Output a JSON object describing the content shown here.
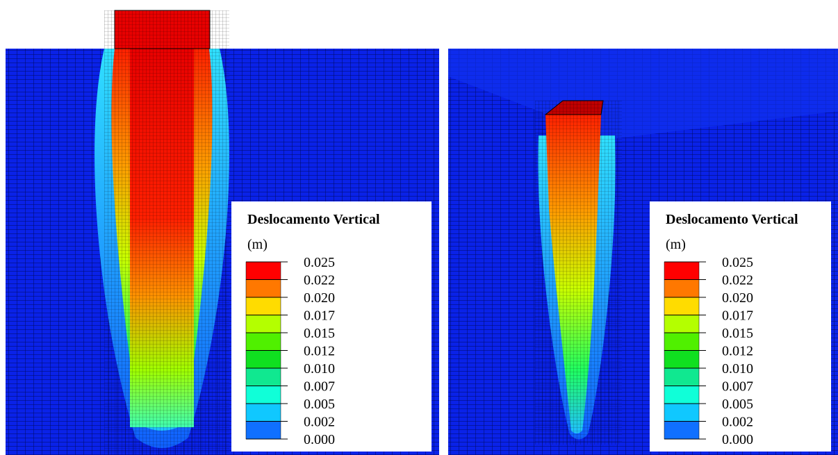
{
  "panels": [
    {
      "legend": {
        "title": "Deslocamento Vertical",
        "unit": "(m)",
        "labels": [
          "0.025",
          "0.022",
          "0.020",
          "0.017",
          "0.015",
          "0.012",
          "0.010",
          "0.007",
          "0.005",
          "0.002",
          "0.000"
        ]
      }
    },
    {
      "legend": {
        "title": "Deslocamento Vertical",
        "unit": "(m)",
        "labels": [
          "0.025",
          "0.022",
          "0.020",
          "0.017",
          "0.015",
          "0.012",
          "0.010",
          "0.007",
          "0.005",
          "0.002",
          "0.000"
        ]
      }
    }
  ]
}
